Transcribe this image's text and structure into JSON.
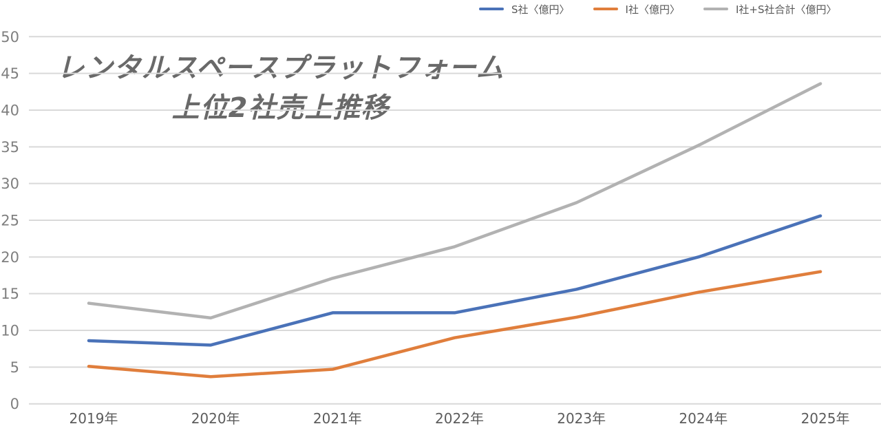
{
  "title": {
    "line1": "レンタルスペースプラットフォーム",
    "line2": "上位2社売上推移"
  },
  "legend": {
    "items": [
      {
        "label": "S社〈億円〉",
        "color": "#4A72B8"
      },
      {
        "label": "I社〈億円〉",
        "color": "#E07E3C"
      },
      {
        "label": "I社+S社合計〈億円〉",
        "color": "#B2B2B2"
      }
    ]
  },
  "chart_data": {
    "type": "line",
    "title": "レンタルスペースプラットフォーム 上位2社売上推移",
    "categories": [
      "2019年",
      "2020年",
      "2021年",
      "2022年",
      "2023年",
      "2024年",
      "2025年"
    ],
    "series": [
      {
        "name": "S社〈億円〉",
        "color": "#4A72B8",
        "values": [
          8.6,
          8.0,
          12.4,
          12.4,
          15.6,
          20.0,
          25.6
        ]
      },
      {
        "name": "I社〈億円〉",
        "color": "#E07E3C",
        "values": [
          5.1,
          3.7,
          4.7,
          9.0,
          11.8,
          15.2,
          18.0
        ]
      },
      {
        "name": "I社+S社合計〈億円〉",
        "color": "#B2B2B2",
        "values": [
          13.7,
          11.7,
          17.1,
          21.4,
          27.4,
          35.2,
          43.6
        ]
      }
    ],
    "xlabel": "",
    "ylabel": "",
    "ylim": [
      0,
      50
    ],
    "ytick_step": 5,
    "yticks": [
      0,
      5,
      10,
      15,
      20,
      25,
      30,
      35,
      40,
      45,
      50
    ],
    "grid": true,
    "legend_position": "top-right",
    "gridline_color": "#D9D9D9",
    "ytick_label_color": "#7F7F7F",
    "xtick_label_color": "#5C5C5C",
    "title_color": "#696969"
  }
}
